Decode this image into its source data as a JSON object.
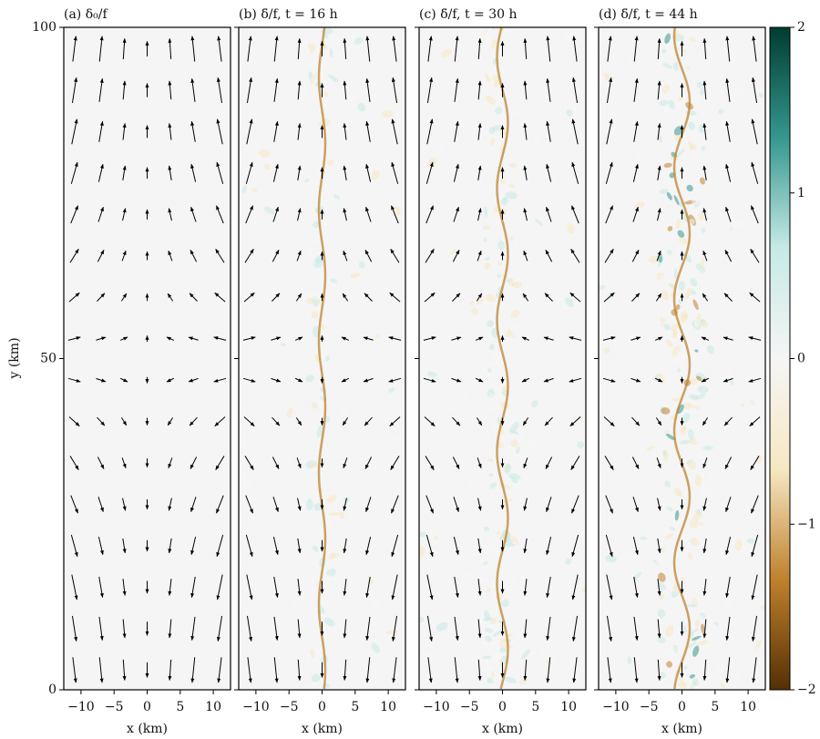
{
  "chart_data": {
    "type": "heatmap",
    "ylabel": "y (km)",
    "panels": [
      {
        "title": "(a) δ₀/f",
        "xlabel": "x (km)"
      },
      {
        "title": "(b) δ̄/f, t = 16 h",
        "xlabel": "x (km)"
      },
      {
        "title": "(c) δ̄/f, t = 30 h",
        "xlabel": "x (km)"
      },
      {
        "title": "(d) δ̄/f, t = 44 h",
        "xlabel": "x (km)"
      }
    ],
    "xlim": [
      -12.6,
      12.6
    ],
    "xticks": [
      {
        "value": -10,
        "label": "−10"
      },
      {
        "value": -5,
        "label": "−5"
      },
      0,
      5,
      10
    ],
    "ylim": [
      0,
      100
    ],
    "yticks": [
      0,
      50,
      100
    ],
    "colorbar": {
      "lim": [
        -2,
        2
      ],
      "ticks": [
        {
          "value": -2,
          "label": "−2"
        },
        {
          "value": -1,
          "label": "−1"
        },
        0,
        1,
        2
      ],
      "colors": [
        "#543005",
        "#bf812d",
        "#f6e8c3",
        "#f5f5f5",
        "#c7eae5",
        "#35978f",
        "#003c30"
      ]
    }
  }
}
